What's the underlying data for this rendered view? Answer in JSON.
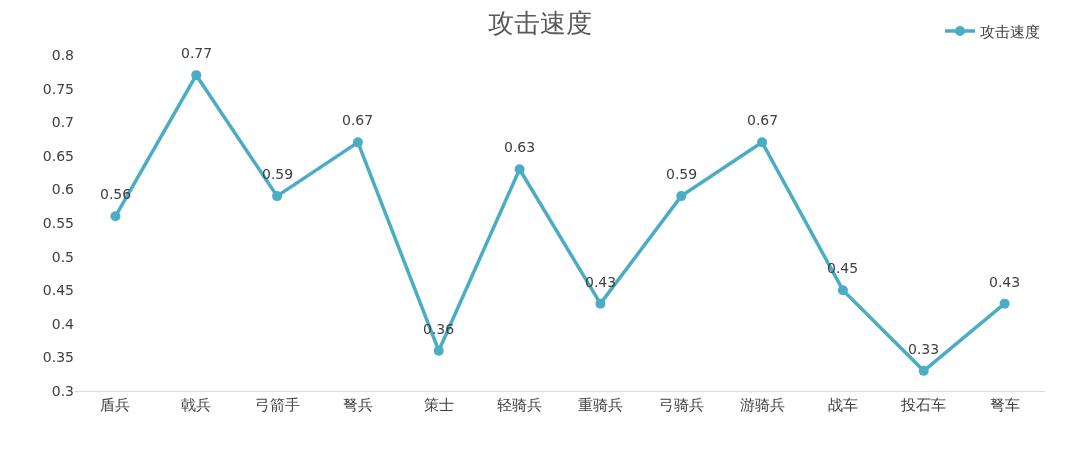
{
  "chart_data": {
    "type": "line",
    "title": "攻击速度",
    "categories": [
      "盾兵",
      "戟兵",
      "弓箭手",
      "弩兵",
      "策士",
      "轻骑兵",
      "重骑兵",
      "弓骑兵",
      "游骑兵",
      "战车",
      "投石车",
      "弩车"
    ],
    "series": [
      {
        "name": "攻击速度",
        "color": "#4bacc6",
        "values": [
          0.56,
          0.77,
          0.59,
          0.67,
          0.36,
          0.63,
          0.43,
          0.59,
          0.67,
          0.45,
          0.33,
          0.43
        ]
      }
    ],
    "ylim": [
      0.3,
      0.8
    ],
    "yticks": [
      0.3,
      0.35,
      0.4,
      0.45,
      0.5,
      0.55,
      0.6,
      0.65,
      0.7,
      0.75,
      0.8
    ],
    "legend": "top right",
    "marker": "circle",
    "line_style": "solid",
    "data_labels": true
  }
}
